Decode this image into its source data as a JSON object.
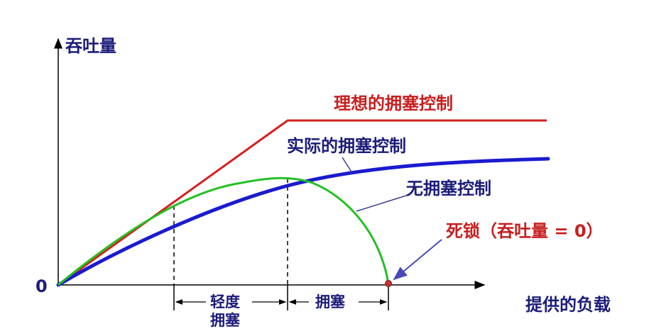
{
  "axes": {
    "y_label": "吞吐量",
    "x_label": "提供的负载",
    "origin_label": "0"
  },
  "curves": {
    "ideal": {
      "label": "理想的拥塞控制",
      "color": "#d42020"
    },
    "actual": {
      "label": "实际的拥塞控制",
      "color": "#1a1ad0"
    },
    "none": {
      "label": "无拥塞控制",
      "color": "#22c022"
    }
  },
  "annotations": {
    "deadlock": "死锁（吞吐量 = 0）",
    "light_congestion_line1": "轻度",
    "light_congestion_line2": "拥塞",
    "congestion": "拥塞"
  },
  "colors": {
    "axis": "#000000",
    "label_navy": "#1c1c7a",
    "label_red": "#c81e1e"
  }
}
